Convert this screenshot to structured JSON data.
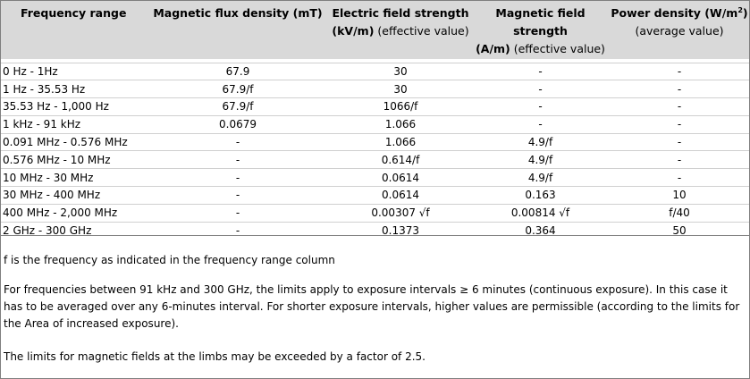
{
  "header": {
    "col1": "Frequency range",
    "col2": "Magnetic flux density (mT)",
    "col3_line1": "Electric field strength",
    "col3_line2_bold": "(kV/m)",
    "col3_line2": " (effective value)",
    "col4_line1": "Magnetic field strength",
    "col4_line2_bold": "(A/m)",
    "col4_line2": " (effective value)",
    "col5_line1": "Power density (W/m",
    "col5_sup": "2",
    "col5_line1_end": ")",
    "col5_line2": "(average value)"
  },
  "rows": [
    {
      "range": "0 Hz - 1Hz",
      "flux": "67.9",
      "efield": "30",
      "hfield": "-",
      "power": "-"
    },
    {
      "range": "1 Hz - 35.53 Hz",
      "flux": "67.9/f",
      "efield": "30",
      "hfield": "-",
      "power": "-"
    },
    {
      "range": "35.53 Hz - 1,000 Hz",
      "flux": "67.9/f",
      "efield": "1066/f",
      "hfield": "-",
      "power": "-"
    },
    {
      "range": "1 kHz - 91 kHz",
      "flux": "0.0679",
      "efield": "1.066",
      "hfield": "-",
      "power": "-"
    },
    {
      "range": "0.091 MHz - 0.576 MHz",
      "flux": "-",
      "efield": "1.066",
      "hfield": "4.9/f",
      "power": "-"
    },
    {
      "range": "0.576 MHz - 10 MHz",
      "flux": "-",
      "efield": "0.614/f",
      "hfield": "4.9/f",
      "power": "-"
    },
    {
      "range": "10 MHz - 30 MHz",
      "flux": "-",
      "efield": "0.0614",
      "hfield": "4.9/f",
      "power": "-"
    },
    {
      "range": "30 MHz - 400 MHz",
      "flux": "-",
      "efield": "0.0614",
      "hfield": "0.163",
      "power": "10"
    },
    {
      "range": "400 MHz - 2,000 MHz",
      "flux": "-",
      "efield": "0.00307 √f",
      "hfield": "0.00814 √f",
      "power": "f/40"
    },
    {
      "range": "2 GHz - 300 GHz",
      "flux": "-",
      "efield": "0.1373",
      "hfield": "0.364",
      "power": "50"
    }
  ],
  "notes": {
    "note1": "f is the frequency as indicated in the frequency range column",
    "note2": "For frequencies between 91 kHz and 300 GHz, the limits apply to exposure intervals ≥ 6 minutes (continuous exposure). In this case it has to be averaged over any 6-minutes interval. For shorter exposure intervals, higher values are permissible (according to the limits for the Area of increased exposure).",
    "note3": "The limits for magnetic fields at the limbs may be exceeded by a factor of 2.5."
  }
}
